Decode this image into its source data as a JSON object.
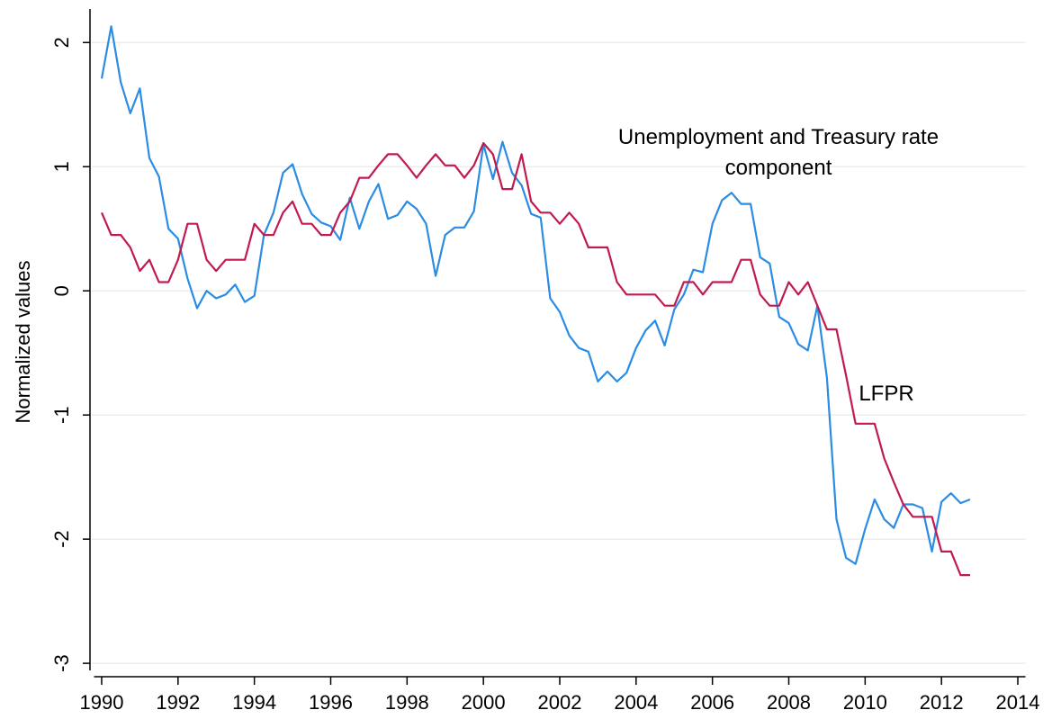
{
  "chart_data": {
    "type": "line",
    "y_label": "Normalized values",
    "x": [
      1990,
      1990.25,
      1990.5,
      1990.75,
      1991,
      1991.25,
      1991.5,
      1991.75,
      1992,
      1992.25,
      1992.5,
      1992.75,
      1993,
      1993.25,
      1993.5,
      1993.75,
      1994,
      1994.25,
      1994.5,
      1994.75,
      1995,
      1995.25,
      1995.5,
      1995.75,
      1996,
      1996.25,
      1996.5,
      1996.75,
      1997,
      1997.25,
      1997.5,
      1997.75,
      1998,
      1998.25,
      1998.5,
      1998.75,
      1999,
      1999.25,
      1999.5,
      1999.75,
      2000,
      2000.25,
      2000.5,
      2000.75,
      2001,
      2001.25,
      2001.5,
      2001.75,
      2002,
      2002.25,
      2002.5,
      2002.75,
      2003,
      2003.25,
      2003.5,
      2003.75,
      2004,
      2004.25,
      2004.5,
      2004.75,
      2005,
      2005.25,
      2005.5,
      2005.75,
      2006,
      2006.25,
      2006.5,
      2006.75,
      2007,
      2007.25,
      2007.5,
      2007.75,
      2008,
      2008.25,
      2008.5,
      2008.75,
      2009,
      2009.25,
      2009.5,
      2009.75,
      2010,
      2010.25,
      2010.5,
      2010.75,
      2011,
      2011.25,
      2011.5,
      2011.75,
      2012,
      2012.25,
      2012.5,
      2012.75
    ],
    "series": [
      {
        "name": "Unemployment and Treasury rate component",
        "color": "#2b8ce3",
        "values": [
          1.71,
          2.13,
          1.68,
          1.43,
          1.63,
          1.07,
          0.92,
          0.5,
          0.42,
          0.1,
          -0.14,
          0,
          -0.06,
          -0.03,
          0.05,
          -0.09,
          -0.04,
          0.45,
          0.63,
          0.95,
          1.02,
          0.78,
          0.62,
          0.55,
          0.52,
          0.41,
          0.75,
          0.5,
          0.72,
          0.86,
          0.58,
          0.61,
          0.72,
          0.66,
          0.54,
          0.12,
          0.45,
          0.51,
          0.51,
          0.64,
          1.18,
          0.9,
          1.2,
          0.95,
          0.85,
          0.62,
          0.59,
          -0.06,
          -0.17,
          -0.36,
          -0.46,
          -0.49,
          -0.73,
          -0.65,
          -0.73,
          -0.66,
          -0.46,
          -0.32,
          -0.24,
          -0.44,
          -0.15,
          -0.03,
          0.17,
          0.15,
          0.54,
          0.73,
          0.79,
          0.7,
          0.7,
          0.27,
          0.22,
          -0.21,
          -0.26,
          -0.43,
          -0.48,
          -0.12,
          -0.7,
          -1.84,
          -2.15,
          -2.2,
          -1.92,
          -1.68,
          -1.84,
          -1.91,
          -1.72,
          -1.72,
          -1.75,
          -2.1,
          -1.7,
          -1.63,
          -1.71,
          -1.68
        ]
      },
      {
        "name": "LFPR",
        "color": "#c01a4f",
        "values": [
          0.63,
          0.45,
          0.45,
          0.35,
          0.16,
          0.25,
          0.07,
          0.07,
          0.25,
          0.54,
          0.54,
          0.25,
          0.16,
          0.25,
          0.25,
          0.25,
          0.54,
          0.45,
          0.45,
          0.63,
          0.72,
          0.54,
          0.54,
          0.45,
          0.45,
          0.63,
          0.72,
          0.91,
          0.91,
          1.01,
          1.1,
          1.1,
          1.01,
          0.91,
          1.01,
          1.1,
          1.01,
          1.01,
          0.91,
          1.01,
          1.19,
          1.1,
          0.82,
          0.82,
          1.1,
          0.72,
          0.63,
          0.63,
          0.54,
          0.63,
          0.54,
          0.35,
          0.35,
          0.35,
          0.07,
          -0.03,
          -0.03,
          -0.03,
          -0.03,
          -0.12,
          -0.12,
          0.07,
          0.07,
          -0.03,
          0.07,
          0.07,
          0.07,
          0.25,
          0.25,
          -0.03,
          -0.12,
          -0.12,
          0.07,
          -0.03,
          0.07,
          -0.12,
          -0.31,
          -0.31,
          -0.68,
          -1.07,
          -1.07,
          -1.07,
          -1.35,
          -1.54,
          -1.72,
          -1.82,
          -1.82,
          -1.82,
          -2.1,
          -2.1,
          -2.29,
          -2.29
        ]
      }
    ],
    "xlim": [
      1989.8,
      2014.2
    ],
    "xticks": [
      1990,
      1992,
      1994,
      1996,
      1998,
      2000,
      2002,
      2004,
      2006,
      2008,
      2010,
      2012,
      2014
    ],
    "ylim": [
      -3.05,
      2.27
    ],
    "yticks": [
      -3,
      -2,
      -1,
      0,
      1,
      2
    ],
    "grid": true
  }
}
